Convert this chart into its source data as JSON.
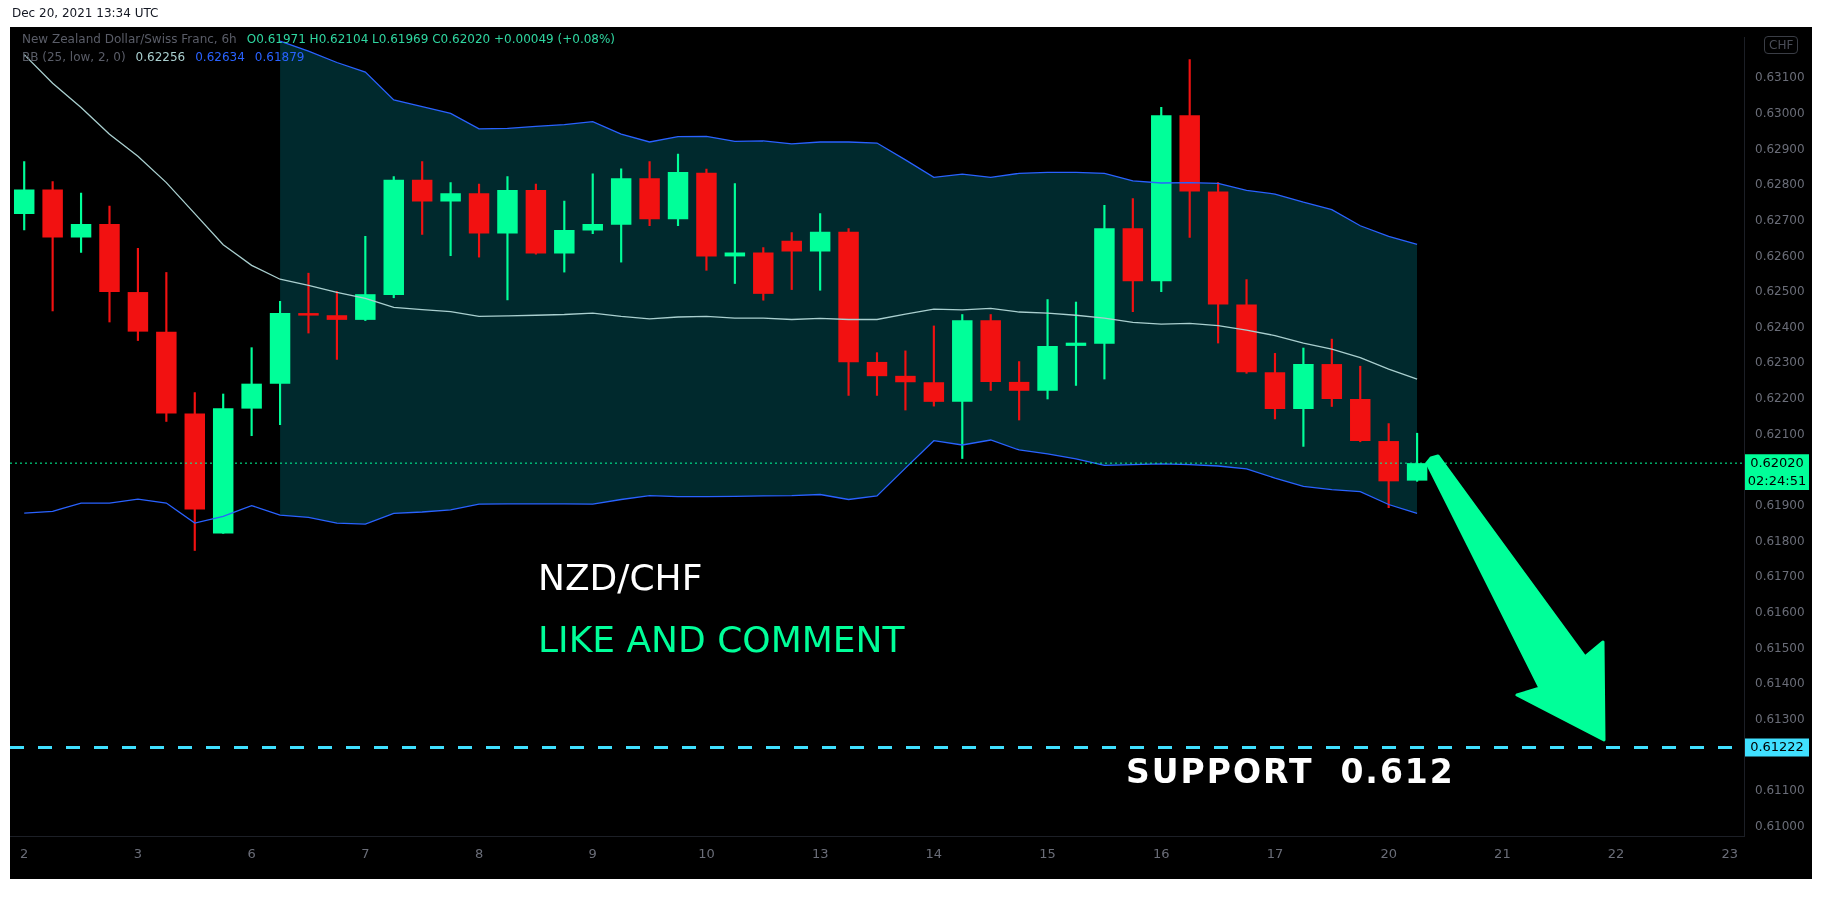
{
  "chart_data": {
    "type": "candlestick",
    "title": "New Zealand Dollar/Swiss Franc, 6h",
    "categories": [
      "2",
      null,
      null,
      null,
      "3",
      null,
      null,
      null,
      "6",
      null,
      null,
      null,
      "7",
      null,
      null,
      null,
      "8",
      null,
      null,
      null,
      "9",
      null,
      null,
      null,
      "10",
      null,
      null,
      null,
      "13",
      null,
      null,
      null,
      "14",
      null,
      null,
      null,
      "15",
      null,
      null,
      null,
      "16",
      null,
      null,
      null,
      "17",
      null,
      null,
      null,
      "20",
      null,
      null,
      null,
      "21",
      null,
      null,
      null,
      "22",
      null,
      null,
      null,
      "23"
    ],
    "ohlc": [
      [
        0.62719,
        0.62866,
        0.62674,
        0.62788
      ],
      [
        0.62788,
        0.6281,
        0.62447,
        0.62653
      ],
      [
        0.62653,
        0.62778,
        0.62611,
        0.62691
      ],
      [
        0.62691,
        0.62741,
        0.62416,
        0.625
      ],
      [
        0.625,
        0.62623,
        0.62364,
        0.62389
      ],
      [
        0.62389,
        0.62555,
        0.62137,
        0.62159
      ],
      [
        0.62159,
        0.62218,
        0.61775,
        0.6189
      ],
      [
        0.61823,
        0.62214,
        0.61823,
        0.62174
      ],
      [
        0.62173,
        0.62344,
        0.62097,
        0.62243
      ],
      [
        0.62243,
        0.62474,
        0.62128,
        0.62441
      ],
      [
        0.62441,
        0.62553,
        0.62385,
        0.62434
      ],
      [
        0.62435,
        0.62502,
        0.62311,
        0.62422
      ],
      [
        0.62422,
        0.62656,
        0.6242,
        0.62494
      ],
      [
        0.62492,
        0.62824,
        0.62484,
        0.62815
      ],
      [
        0.62815,
        0.62866,
        0.62662,
        0.62754
      ],
      [
        0.62754,
        0.62807,
        0.62602,
        0.62777
      ],
      [
        0.62777,
        0.62803,
        0.62598,
        0.62664
      ],
      [
        0.62664,
        0.62824,
        0.62478,
        0.62786
      ],
      [
        0.62786,
        0.62803,
        0.62606,
        0.62608
      ],
      [
        0.62608,
        0.62755,
        0.62556,
        0.62674
      ],
      [
        0.62673,
        0.62832,
        0.62664,
        0.62691
      ],
      [
        0.62689,
        0.62846,
        0.62584,
        0.62819
      ],
      [
        0.62819,
        0.62866,
        0.62686,
        0.62704
      ],
      [
        0.62704,
        0.62887,
        0.62686,
        0.62837
      ],
      [
        0.62835,
        0.62845,
        0.62561,
        0.626
      ],
      [
        0.626,
        0.62804,
        0.62524,
        0.62611
      ],
      [
        0.62611,
        0.62625,
        0.62477,
        0.62495
      ],
      [
        0.62644,
        0.62667,
        0.62507,
        0.62614
      ],
      [
        0.62614,
        0.6272,
        0.62505,
        0.62669
      ],
      [
        0.62669,
        0.62678,
        0.6221,
        0.62303
      ],
      [
        0.62304,
        0.6233,
        0.6221,
        0.62264
      ],
      [
        0.62265,
        0.62335,
        0.62169,
        0.62247
      ],
      [
        0.62247,
        0.62405,
        0.6218,
        0.62192
      ],
      [
        0.62192,
        0.62437,
        0.62033,
        0.62421
      ],
      [
        0.62421,
        0.62437,
        0.62224,
        0.62248
      ],
      [
        0.62248,
        0.62305,
        0.62141,
        0.62223
      ],
      [
        0.62223,
        0.62479,
        0.622,
        0.62349
      ],
      [
        0.62349,
        0.62472,
        0.62238,
        0.62358
      ],
      [
        0.62355,
        0.62743,
        0.62256,
        0.62679
      ],
      [
        0.62679,
        0.62762,
        0.62445,
        0.6253
      ],
      [
        0.6253,
        0.63018,
        0.62501,
        0.62996
      ],
      [
        0.62996,
        0.63152,
        0.62653,
        0.62782
      ],
      [
        0.62782,
        0.62807,
        0.62357,
        0.62465
      ],
      [
        0.62465,
        0.62535,
        0.62272,
        0.62275
      ],
      [
        0.62275,
        0.62328,
        0.62144,
        0.62172
      ],
      [
        0.62172,
        0.62343,
        0.62067,
        0.62298
      ],
      [
        0.62298,
        0.62368,
        0.62179,
        0.622
      ],
      [
        0.622,
        0.62292,
        0.6208,
        0.62082
      ],
      [
        0.62082,
        0.62131,
        0.61895,
        0.61969
      ],
      [
        0.61971,
        0.62104,
        0.61969,
        0.6202
      ],
      null,
      null,
      null,
      null,
      null,
      null,
      null,
      null,
      null,
      null,
      null
    ],
    "colors": [
      "#00ff99",
      "#f21111",
      "#00ff99",
      "#f21111",
      "#f21111",
      "#f21111",
      "#f21111",
      "#00ff99",
      "#00ff99",
      "#00ff99",
      "#f21111",
      "#f21111",
      "#00ff99",
      "#00ff99",
      "#f21111",
      "#00ff99",
      "#f21111",
      "#00ff99",
      "#f21111",
      "#00ff99",
      "#00ff99",
      "#00ff99",
      "#f21111",
      "#00ff99",
      "#f21111",
      "#00ff99",
      "#f21111",
      "#f21111",
      "#00ff99",
      "#f21111",
      "#f21111",
      "#f21111",
      "#f21111",
      "#00ff99",
      "#f21111",
      "#f21111",
      "#00ff99",
      "#00ff99",
      "#00ff99",
      "#f21111",
      "#00ff99",
      "#f21111",
      "#f21111",
      "#f21111",
      "#f21111",
      "#00ff99",
      "#f21111",
      "#f21111",
      "#f21111",
      "#00ff99",
      null,
      null,
      null,
      null,
      null,
      null,
      null,
      null,
      null,
      null,
      null
    ],
    "series": [
      {
        "type": "line",
        "color": "#2962ff",
        "values": [
          null,
          null,
          null,
          null,
          null,
          null,
          null,
          null,
          null,
          0.63204,
          0.63176,
          0.63144,
          0.63117,
          0.63039,
          0.6302,
          0.63001,
          0.62958,
          0.62959,
          0.62965,
          0.6297,
          0.62978,
          0.62943,
          0.62921,
          0.62936,
          0.62937,
          0.62923,
          0.62924,
          0.62916,
          0.62921,
          0.62921,
          0.62918,
          0.62871,
          0.62822,
          0.62831,
          0.62822,
          0.62833,
          0.62836,
          0.62836,
          0.62833,
          0.62812,
          0.62806,
          0.62807,
          0.62805,
          0.62785,
          0.62775,
          0.62752,
          0.62731,
          0.62686,
          0.62656,
          0.62634,
          null,
          null,
          null,
          null,
          null,
          null,
          null,
          null,
          null,
          null,
          null
        ]
      },
      {
        "type": "line",
        "color": "#2962ff",
        "values": [
          0.6188,
          0.61885,
          0.61908,
          0.61908,
          0.61919,
          0.61908,
          0.61852,
          0.61871,
          0.61901,
          0.61874,
          0.61868,
          0.61852,
          0.61849,
          0.61879,
          0.61883,
          0.61889,
          0.61905,
          0.61906,
          0.61906,
          0.61906,
          0.61905,
          0.61918,
          0.61929,
          0.61926,
          0.61926,
          0.61927,
          0.61928,
          0.61929,
          0.61932,
          0.61918,
          0.61928,
          0.62006,
          0.62083,
          0.62071,
          0.62085,
          0.62057,
          0.62046,
          0.62032,
          0.62014,
          0.62016,
          0.62018,
          0.62016,
          0.62012,
          0.62004,
          0.61978,
          0.61955,
          0.61946,
          0.6194,
          0.61904,
          0.61879,
          null,
          null,
          null,
          null,
          null,
          null,
          null,
          null,
          null,
          null,
          null
        ]
      },
      {
        "type": "line",
        "color": "#a9cfcf",
        "values": [
          0.63166,
          0.63086,
          0.63018,
          0.62943,
          0.62881,
          0.62807,
          0.6272,
          0.62633,
          0.62575,
          0.62536,
          0.62519,
          0.62499,
          0.62482,
          0.62457,
          0.62451,
          0.62445,
          0.62432,
          0.62433,
          0.62435,
          0.62437,
          0.62441,
          0.62432,
          0.62425,
          0.6243,
          0.62432,
          0.62427,
          0.62427,
          0.62423,
          0.62426,
          0.62423,
          0.62423,
          0.62438,
          0.62452,
          0.6245,
          0.62454,
          0.62444,
          0.62441,
          0.62435,
          0.62427,
          0.62415,
          0.6241,
          0.62412,
          0.62406,
          0.62393,
          0.62378,
          0.62357,
          0.6234,
          0.62316,
          0.62284,
          0.62256,
          null,
          null,
          null,
          null,
          null,
          null,
          null,
          null,
          null,
          null,
          null
        ],
        "upper": [
          null,
          null,
          null,
          null,
          null,
          null,
          null,
          null,
          null,
          0.63204,
          0.63176,
          0.63144,
          0.63117,
          0.63039,
          0.6302,
          0.63001,
          0.62958,
          0.62959,
          0.62965,
          0.6297,
          0.62978,
          0.62943,
          0.62921,
          0.62936,
          0.62937,
          0.62923,
          0.62924,
          0.62916,
          0.62921,
          0.62921,
          0.62918,
          0.62871,
          0.62822,
          0.62831,
          0.62822,
          0.62833,
          0.62836,
          0.62836,
          0.62833,
          0.62812,
          0.62806,
          0.62807,
          0.62805,
          0.62785,
          0.62775,
          0.62752,
          0.62731,
          0.62686,
          0.62656,
          0.62634,
          null,
          null,
          null,
          null,
          null,
          null,
          null,
          null,
          null,
          null,
          null
        ],
        "lower": [
          null,
          null,
          null,
          null,
          null,
          null,
          null,
          null,
          null,
          0.61874,
          0.61868,
          0.61852,
          0.61849,
          0.61879,
          0.61883,
          0.61889,
          0.61905,
          0.61906,
          0.61906,
          0.61906,
          0.61905,
          0.61918,
          0.61929,
          0.61926,
          0.61926,
          0.61927,
          0.61928,
          0.61929,
          0.61932,
          0.61918,
          0.61928,
          0.62006,
          0.62083,
          0.62071,
          0.62085,
          0.62057,
          0.62046,
          0.62032,
          0.62014,
          0.62016,
          0.62018,
          0.62016,
          0.62012,
          0.62004,
          0.61978,
          0.61955,
          0.61946,
          0.6194,
          0.61904,
          0.61879,
          null,
          null,
          null,
          null,
          null,
          null,
          null,
          null,
          null,
          null,
          null
        ]
      }
    ],
    "ylim": [
      0.60974,
      0.63215
    ],
    "yticks": [
      {
        "value": 0.61,
        "label": "0.61000"
      },
      {
        "value": 0.611,
        "label": "0.61100"
      },
      {
        "value": 0.613,
        "label": "0.61300"
      },
      {
        "value": 0.614,
        "label": "0.61400"
      },
      {
        "value": 0.615,
        "label": "0.61500"
      },
      {
        "value": 0.616,
        "label": "0.61600"
      },
      {
        "value": 0.617,
        "label": "0.61700"
      },
      {
        "value": 0.618,
        "label": "0.61800"
      },
      {
        "value": 0.619,
        "label": "0.61900"
      },
      {
        "value": 0.621,
        "label": "0.62100"
      },
      {
        "value": 0.622,
        "label": "0.62200"
      },
      {
        "value": 0.623,
        "label": "0.62300"
      },
      {
        "value": 0.624,
        "label": "0.62400"
      },
      {
        "value": 0.625,
        "label": "0.62500"
      },
      {
        "value": 0.626,
        "label": "0.62600"
      },
      {
        "value": 0.627,
        "label": "0.62700"
      },
      {
        "value": 0.628,
        "label": "0.62800"
      },
      {
        "value": 0.629,
        "label": "0.62900"
      },
      {
        "value": 0.63,
        "label": "0.63000"
      },
      {
        "value": 0.631,
        "label": "0.63100"
      }
    ],
    "ref_lines": [
      {
        "axis": "y",
        "value": 0.61222,
        "label": "0.61222",
        "color": "#40e0ff",
        "line_style": "dashed"
      },
      {
        "axis": "y",
        "value": 0.6202,
        "label": "0.62020",
        "color": "#00ff99",
        "line_style": "dotted"
      }
    ],
    "annotations": [
      "Dec 20, 2021 13:34 UTC",
      "O0.61971 H0.62104 L0.61969 C0.62020 +0.00049 (+0.08%)",
      "BB (25, low, 2, 0)",
      "0.62256",
      "0.62634",
      "0.61879",
      "CHF",
      "02:24:51",
      "NZD/CHF",
      "LIKE AND COMMENT",
      "SUPPORT  0.612"
    ]
  }
}
